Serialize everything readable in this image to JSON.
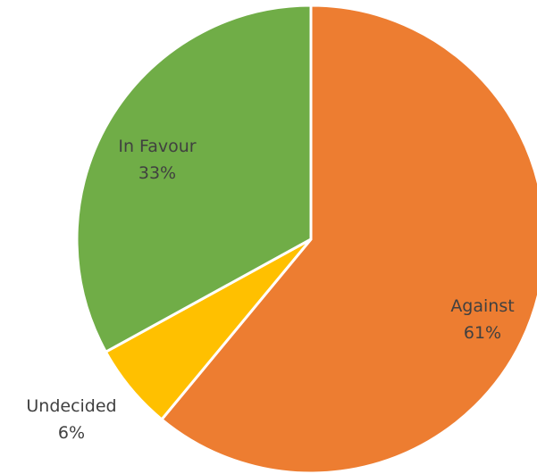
{
  "chart_data": {
    "type": "pie",
    "title": "",
    "categories": [
      "Against",
      "Undecided",
      "In Favour"
    ],
    "values": [
      61,
      6,
      33
    ],
    "value_labels": [
      "61%",
      "6%",
      "33%"
    ],
    "colors": [
      "#ED7D31",
      "#FFC000",
      "#70AD47"
    ],
    "label_colors": [
      "#404040",
      "#404040",
      "#404040"
    ],
    "start": "12 o'clock",
    "direction": "clockwise",
    "legend": "none"
  }
}
